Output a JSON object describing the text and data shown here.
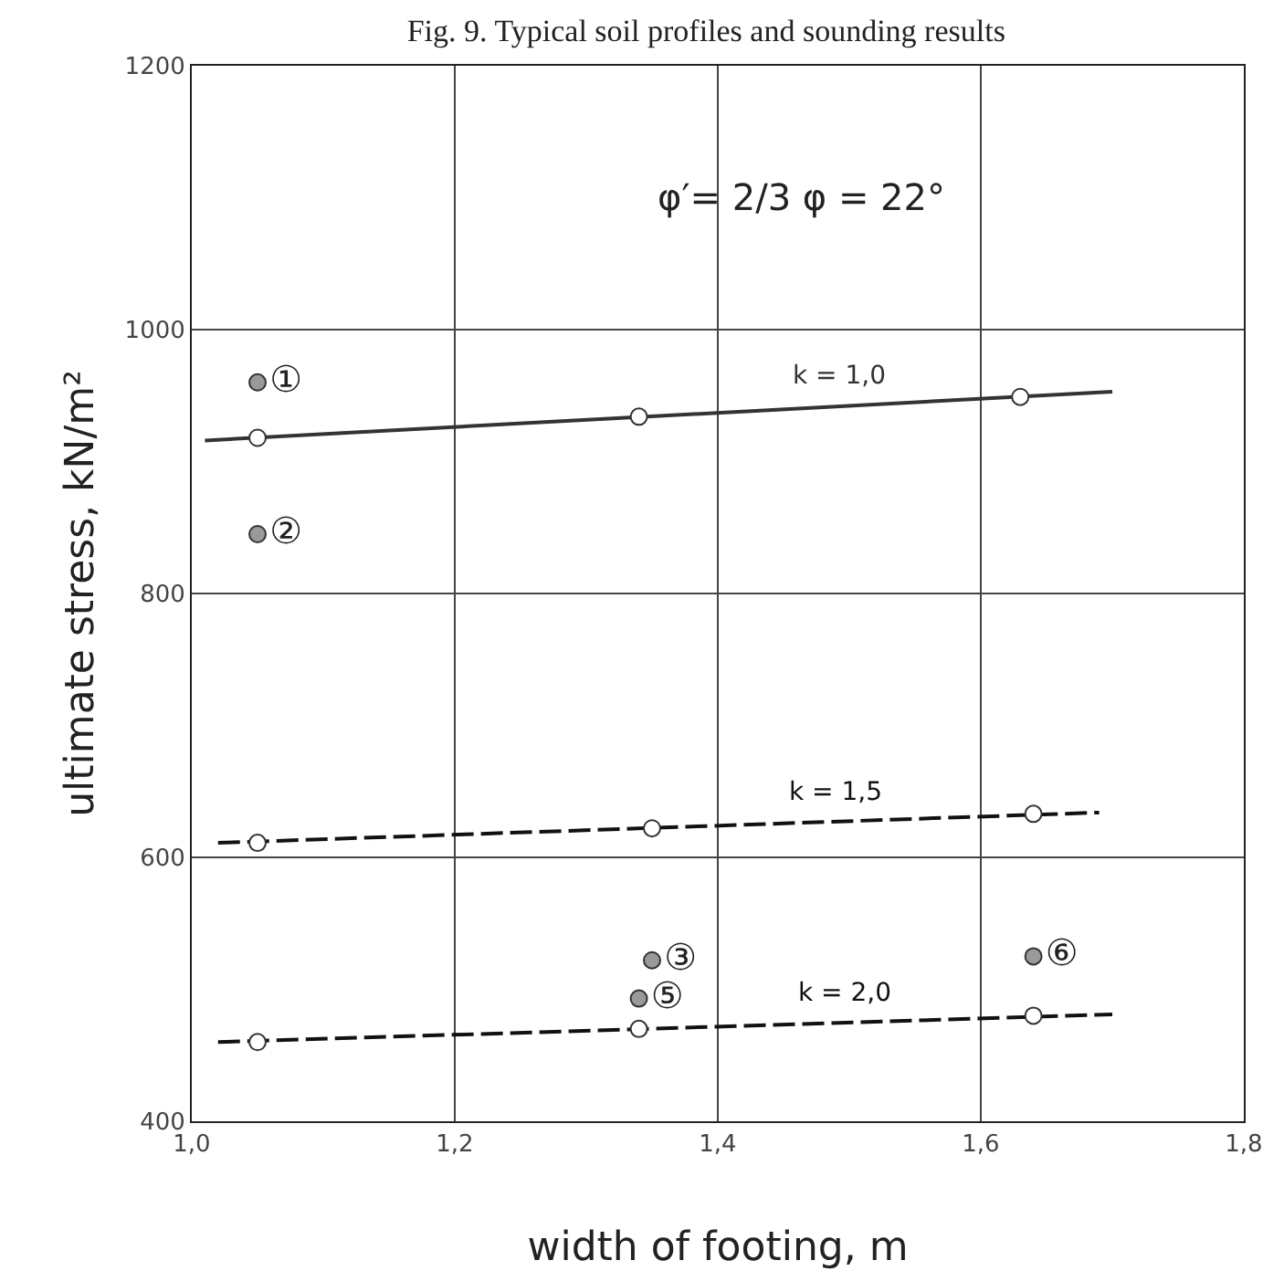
{
  "chart_data": {
    "type": "line",
    "title": "Fig. 9. Typical soil profiles and sounding results",
    "xlabel": "width of footing, m",
    "ylabel": "ultimate stress, kN/m²",
    "xlim": [
      1.0,
      1.8
    ],
    "xticks": [
      {
        "value": 1.0,
        "label": "1,0"
      },
      {
        "value": 1.2,
        "label": "1,2"
      },
      {
        "value": 1.4,
        "label": "1,4"
      },
      {
        "value": 1.6,
        "label": "1,6"
      },
      {
        "value": 1.8,
        "label": "1,8"
      }
    ],
    "ylim": [
      400,
      1200
    ],
    "yticks": [
      400,
      600,
      800,
      1000,
      1200
    ],
    "grid": true,
    "legend": false,
    "series": [
      {
        "name": "k = 1,0",
        "color": "#333333",
        "line_style": "solid",
        "marker": "none",
        "x": [
          1.01,
          1.7
        ],
        "values": [
          916,
          953
        ]
      },
      {
        "name": "k = 1,5",
        "color": "#111111",
        "line_style": "dashed",
        "marker": "none",
        "x": [
          1.02,
          1.69
        ],
        "values": [
          611,
          634
        ]
      },
      {
        "name": "k = 2,0",
        "color": "#111111",
        "line_style": "dashed",
        "marker": "none",
        "x": [
          1.02,
          1.7
        ],
        "values": [
          460,
          481
        ]
      },
      {
        "type": "scatter",
        "color": "#ffffff",
        "marker": "circle",
        "x": [
          1.05,
          1.34,
          1.63,
          1.05,
          1.35,
          1.64,
          1.05,
          1.34,
          1.64
        ],
        "values": [
          918,
          934,
          949,
          611,
          622,
          633,
          460,
          470,
          480
        ]
      },
      {
        "type": "scatter",
        "color": "#999999",
        "marker": "circle",
        "x": [
          1.05,
          1.05,
          1.35,
          1.34,
          1.64
        ],
        "values": [
          960,
          845,
          522,
          493,
          525
        ],
        "value_labels": [
          "①",
          "②",
          "③",
          "⑤",
          "⑥"
        ]
      }
    ],
    "annotations": [
      "φ′= 2/3 φ = 22°"
    ]
  }
}
